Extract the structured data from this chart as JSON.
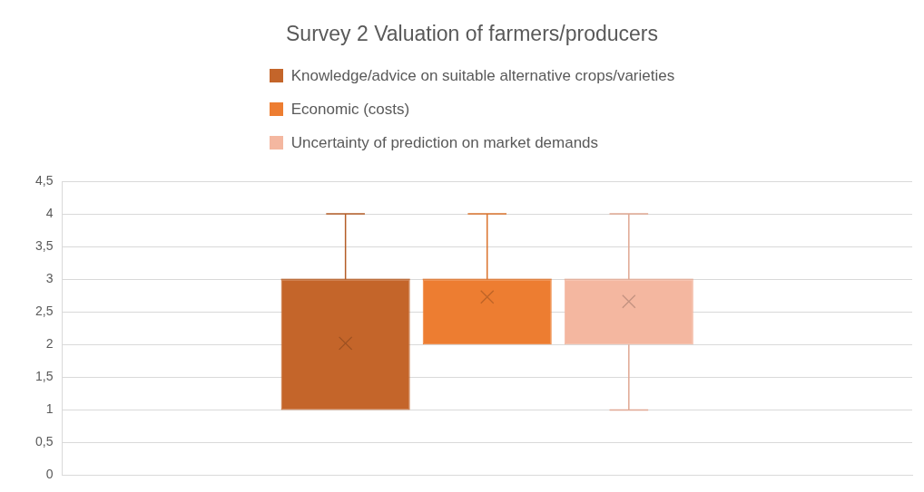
{
  "chart_data": {
    "type": "box",
    "title": "Survey 2 Valuation of farmers/producers",
    "categories": [
      null
    ],
    "series": [
      {
        "name": "Knowledge/advice on suitable alternative crops/varieties",
        "color": "#c4652a",
        "boxes": [
          {
            "low": 1,
            "q1": 1,
            "median": 3,
            "q3": 3,
            "high": 4,
            "mean": 2.02
          }
        ]
      },
      {
        "name": "Economic (costs)",
        "color": "#ed7d31",
        "boxes": [
          {
            "low": 2,
            "q1": 2,
            "median": 3,
            "q3": 3,
            "high": 4,
            "mean": 2.73
          }
        ]
      },
      {
        "name": "Uncertainty of prediction on market demands",
        "color": "#f4b7a0",
        "boxes": [
          {
            "low": 1,
            "q1": 2,
            "median": 3,
            "q3": 3,
            "high": 4,
            "mean": 2.66
          }
        ]
      }
    ],
    "ylim": [
      0,
      4.5
    ],
    "yticks": [
      0,
      {
        "value": 0.5,
        "label": "0,5"
      },
      1,
      {
        "value": 1.5,
        "label": "1,5"
      },
      2,
      {
        "value": 2.5,
        "label": "2,5"
      },
      3,
      {
        "value": 3.5,
        "label": "3,5"
      },
      4,
      {
        "value": 4.5,
        "label": "4,5"
      }
    ],
    "grid": "y",
    "legend": "top",
    "marker": "cross"
  }
}
